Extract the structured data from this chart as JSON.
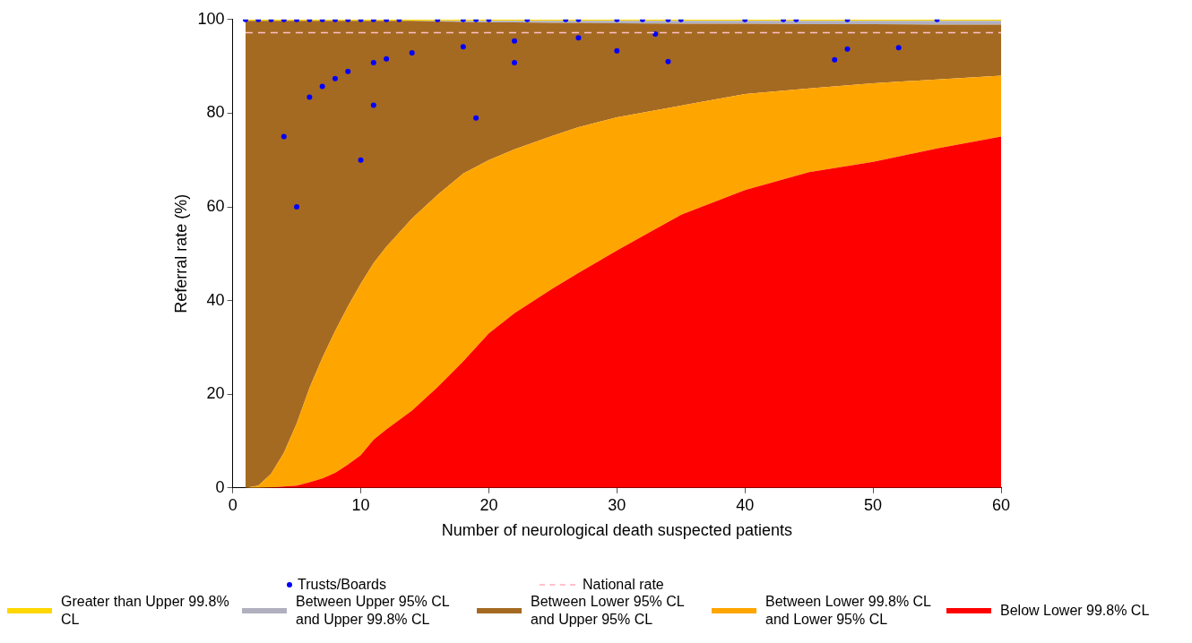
{
  "chart_data": {
    "type": "area",
    "xlabel": "Number of neurological death suspected patients",
    "ylabel": "Referral rate (%)",
    "xlim": [
      0,
      60
    ],
    "ylim": [
      0,
      100
    ],
    "xticks": [
      0,
      10,
      20,
      30,
      40,
      50,
      60
    ],
    "yticks": [
      0,
      20,
      40,
      60,
      80,
      100
    ],
    "grid": false,
    "legend": "bottom",
    "x": [
      1,
      2,
      3,
      4,
      5,
      6,
      7,
      8,
      9,
      10,
      11,
      12,
      14,
      16,
      18,
      20,
      22,
      25,
      27,
      30,
      35,
      40,
      45,
      50,
      55,
      60
    ],
    "stacked": true,
    "series": [
      {
        "name": "Below Lower 99.8% CL",
        "color": "#ff0000",
        "values": [
          0,
          0,
          0.1,
          0.3,
          0.5,
          1.2,
          2,
          3.2,
          5,
          7,
          10.3,
          12.5,
          16.5,
          21.5,
          27,
          33,
          37.3,
          42.6,
          45.9,
          50.7,
          58.3,
          63.6,
          67.4,
          69.6,
          72.5,
          75
        ]
      },
      {
        "name": "Between Lower 99.8% CL and Lower 95% CL",
        "color": "#ffa500",
        "values": [
          0,
          0.5,
          2.9,
          7.2,
          13.3,
          20.2,
          25.8,
          30.3,
          33.8,
          36.6,
          37.7,
          39,
          41,
          41.1,
          40.1,
          37,
          35,
          32.6,
          31.1,
          28.4,
          23.3,
          20.5,
          17.9,
          16.8,
          14.7,
          13
        ]
      },
      {
        "name": "Between Lower 95% CL and Upper 95% CL",
        "color": "#a56a22",
        "values": [
          99.7,
          99.2,
          96.7,
          92.2,
          85.9,
          78.3,
          71.9,
          66.2,
          60.9,
          56.1,
          51.7,
          48.2,
          42.2,
          37,
          32.4,
          29.4,
          27.1,
          24.1,
          22.3,
          20.1,
          17.5,
          15,
          13.7,
          12.6,
          11.7,
          10.9
        ]
      },
      {
        "name": "Between Upper 95% CL and Upper 99.8% CL",
        "color": "#b0b0c0",
        "values": [
          0,
          0,
          0,
          0,
          0,
          0,
          0,
          0,
          0,
          0,
          0,
          0,
          0,
          0.1,
          0.2,
          0.3,
          0.3,
          0.4,
          0.4,
          0.5,
          0.6,
          0.6,
          0.7,
          0.7,
          0.8,
          0.8
        ]
      },
      {
        "name": "Greater than Upper 99.8% CL",
        "color": "#ffd700",
        "values": [
          0.3,
          0.3,
          0.3,
          0.3,
          0.3,
          0.3,
          0.3,
          0.3,
          0.3,
          0.3,
          0.3,
          0.3,
          0.3,
          0.3,
          0.3,
          0.3,
          0.3,
          0.3,
          0.3,
          0.3,
          0.3,
          0.3,
          0.3,
          0.3,
          0.3,
          0.3
        ]
      },
      {
        "name": "Trusts/Boards",
        "type": "scatter",
        "color": "#0000ff",
        "marker": "circle",
        "x": [
          1,
          2,
          3,
          4,
          5,
          6,
          7,
          8,
          9,
          10,
          11,
          12,
          13,
          16,
          18,
          19,
          20,
          23,
          26,
          27,
          30,
          32,
          34,
          35,
          40,
          43,
          44,
          48,
          55,
          4,
          10,
          6,
          7,
          8,
          9,
          11,
          12,
          14,
          11,
          18,
          19,
          22,
          22,
          27,
          30,
          5,
          33,
          34,
          47,
          48,
          52
        ],
        "values": [
          100,
          100,
          100,
          100,
          100,
          100,
          100,
          100,
          100,
          100,
          100,
          100,
          100,
          100,
          100,
          100,
          100,
          100,
          100,
          100,
          100,
          100,
          100,
          100,
          100,
          100,
          100,
          100,
          100,
          75,
          70,
          83.4,
          85.7,
          87.4,
          88.9,
          90.8,
          91.6,
          92.9,
          81.7,
          94.2,
          79,
          95.4,
          90.8,
          96.1,
          93.3,
          60,
          96.9,
          91,
          91.4,
          93.7,
          94
        ]
      }
    ],
    "ref_lines": [
      {
        "axis": "y",
        "value": 97.2,
        "label": "National rate",
        "color": "#ffc0cb",
        "line_style": "dashed"
      }
    ]
  }
}
